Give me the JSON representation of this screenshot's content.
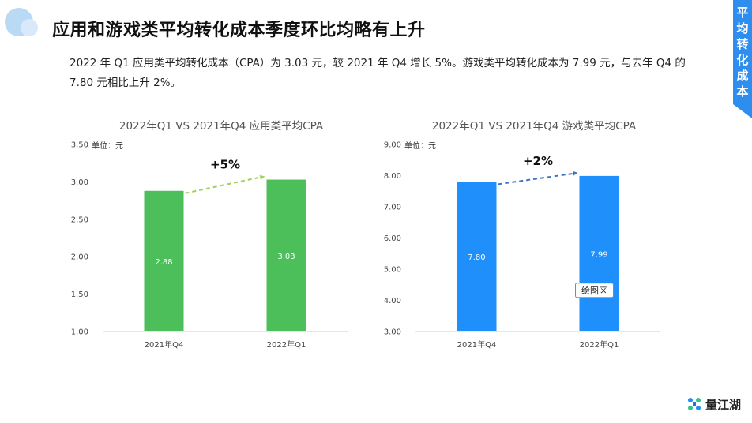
{
  "header": {
    "title": "应用和游戏类平均转化成本季度环比均略有上升",
    "side_tab": "平均转化成本"
  },
  "description": "2022 年 Q1 应用类平均转化成本（CPA）为 3.03 元，较 2021 年 Q4 增长 5%。游戏类平均转化成本为 7.99 元，与去年 Q4 的 7.80 元相比上升 2%。",
  "brand": {
    "name": "量江湖"
  },
  "chart_data": [
    {
      "type": "bar",
      "title": "2022年Q1 VS 2021年Q4 应用类平均CPA",
      "unit_label": "单位：元",
      "categories": [
        "2021年Q4",
        "2022年Q1"
      ],
      "values": [
        2.88,
        3.03
      ],
      "data_labels": [
        "2.88",
        "3.03"
      ],
      "ylim": [
        1.0,
        3.5
      ],
      "yticks": [
        "1.00",
        "1.50",
        "2.00",
        "2.50",
        "3.00",
        "3.50"
      ],
      "change_label": "+5%",
      "bar_color": "#4cbe5a",
      "arrow_color": "#9ed35e",
      "grid": false
    },
    {
      "type": "bar",
      "title": "2022年Q1 VS 2021年Q4 游戏类平均CPA",
      "unit_label": "单位：元",
      "categories": [
        "2021年Q4",
        "2022年Q1"
      ],
      "values": [
        7.8,
        7.99
      ],
      "data_labels": [
        "7.80",
        "7.99"
      ],
      "ylim": [
        3.0,
        9.0
      ],
      "yticks": [
        "3.00",
        "4.00",
        "5.00",
        "6.00",
        "7.00",
        "8.00",
        "9.00"
      ],
      "change_label": "+2%",
      "bar_color": "#1e8ffb",
      "arrow_color": "#3f74c4",
      "grid": false,
      "tooltip": "绘图区"
    }
  ]
}
